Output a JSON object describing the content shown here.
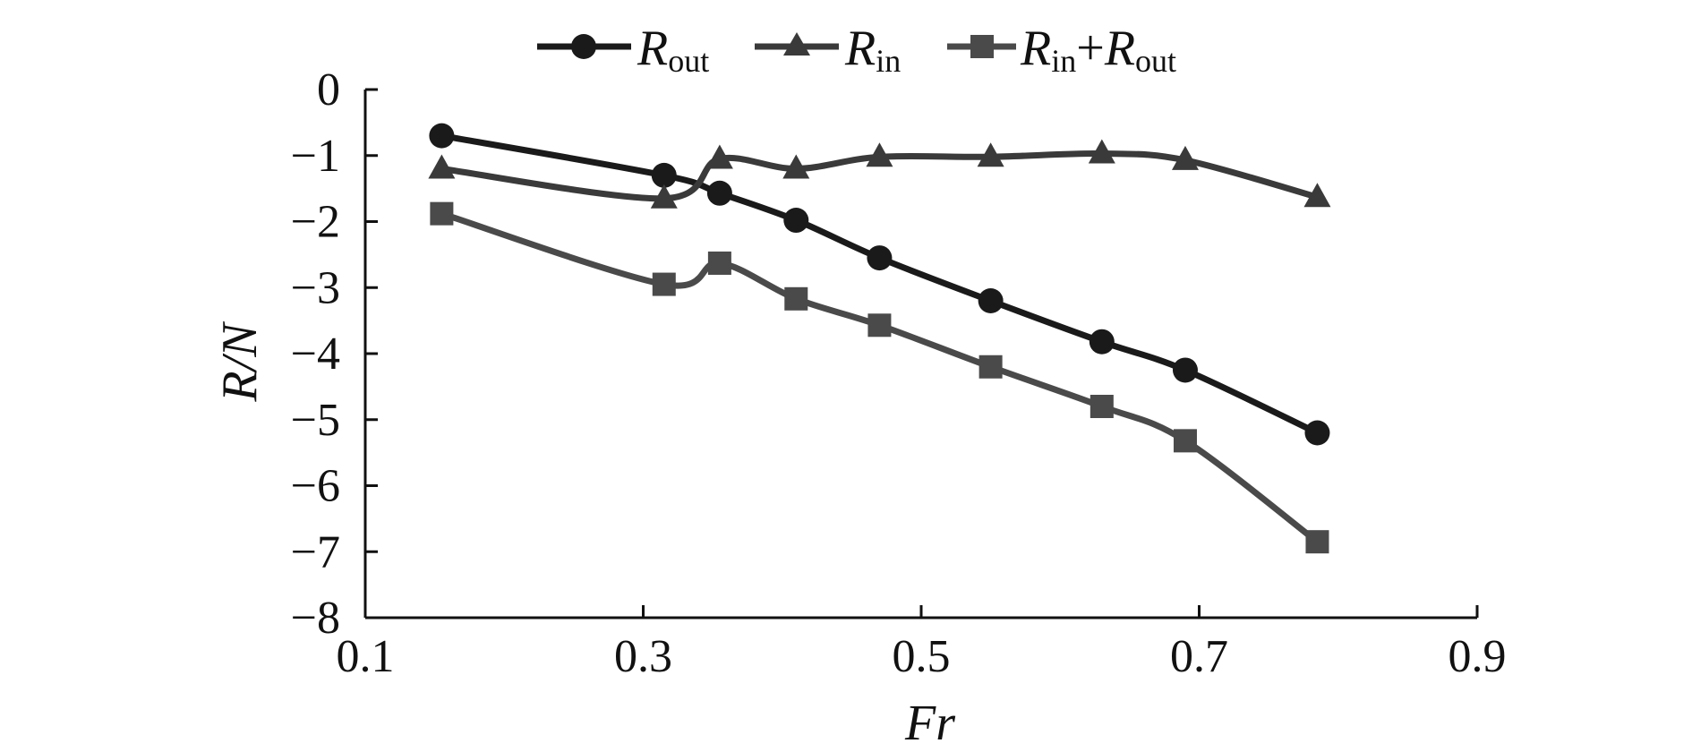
{
  "chart_data": {
    "type": "line",
    "xlabel": "Fr",
    "ylabel": "R/N",
    "xlim": [
      0.1,
      0.9
    ],
    "ylim": [
      -8,
      0
    ],
    "x_ticks": [
      0.1,
      0.3,
      0.5,
      0.7,
      0.9
    ],
    "x_tick_labels": [
      "0.1",
      "0.3",
      "0.5",
      "0.7",
      "0.9"
    ],
    "y_ticks": [
      0,
      -1,
      -2,
      -3,
      -4,
      -5,
      -6,
      -7,
      -8
    ],
    "y_tick_labels": [
      "0",
      "−1",
      "−2",
      "−3",
      "−4",
      "−5",
      "−6",
      "−7",
      "−8"
    ],
    "legend_position": "top",
    "grid": false,
    "series": [
      {
        "name": "R_out",
        "legend": {
          "main": "R",
          "sub": "out"
        },
        "marker": "circle",
        "color": "#1a1a1a",
        "x": [
          0.155,
          0.315,
          0.355,
          0.41,
          0.47,
          0.55,
          0.63,
          0.69,
          0.785
        ],
        "y": [
          -0.7,
          -1.3,
          -1.57,
          -1.98,
          -2.55,
          -3.2,
          -3.82,
          -4.25,
          -5.2
        ]
      },
      {
        "name": "R_in",
        "legend": {
          "main": "R",
          "sub": "in"
        },
        "marker": "triangle",
        "color": "#3a3a3a",
        "x": [
          0.155,
          0.315,
          0.355,
          0.41,
          0.47,
          0.55,
          0.63,
          0.69,
          0.785
        ],
        "y": [
          -1.2,
          -1.65,
          -1.05,
          -1.2,
          -1.02,
          -1.02,
          -0.97,
          -1.07,
          -1.63
        ]
      },
      {
        "name": "R_in+R_out",
        "legend": {
          "main1": "R",
          "sub1": "in",
          "plus": "+",
          "main2": "R",
          "sub2": "out"
        },
        "marker": "square",
        "color": "#4a4a4a",
        "x": [
          0.155,
          0.315,
          0.355,
          0.41,
          0.47,
          0.55,
          0.63,
          0.69,
          0.785
        ],
        "y": [
          -1.88,
          -2.95,
          -2.63,
          -3.17,
          -3.57,
          -4.2,
          -4.8,
          -5.32,
          -6.85
        ]
      }
    ]
  }
}
